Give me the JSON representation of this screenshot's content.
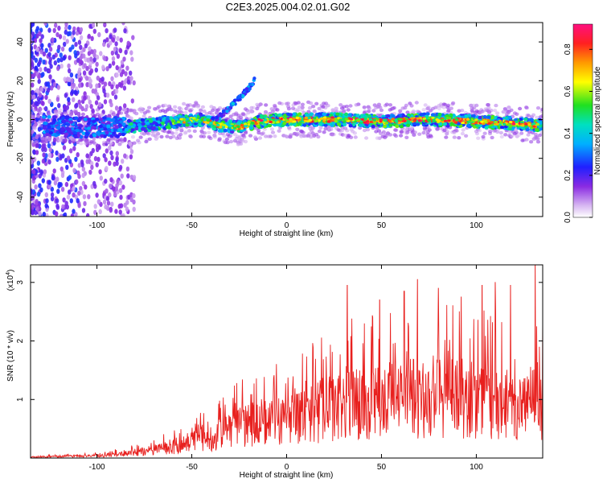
{
  "chart_data": [
    {
      "type": "heatmap",
      "title": "C2E3.2025.004.02.01.G02",
      "xlabel": "Height of straight line (km)",
      "ylabel": "Frequency (Hz)",
      "xlim": [
        -135,
        135
      ],
      "ylim": [
        -50,
        50
      ],
      "xticks": [
        -100,
        -50,
        0,
        50,
        100
      ],
      "yticks": [
        -40,
        -20,
        0,
        20,
        40
      ],
      "colorbar": {
        "label": "Normalized spectral amplitude",
        "range": [
          0,
          0.92
        ],
        "ticks": [
          "0.0",
          "0.2",
          "0.4",
          "0.6",
          "0.8"
        ]
      },
      "signal_track": [
        {
          "x": -128,
          "y": -3
        },
        {
          "x": -110,
          "y": -4
        },
        {
          "x": -90,
          "y": -4
        },
        {
          "x": -75,
          "y": -3
        },
        {
          "x": -60,
          "y": -1
        },
        {
          "x": -45,
          "y": 0
        },
        {
          "x": -35,
          "y": -3
        },
        {
          "x": -25,
          "y": -4
        },
        {
          "x": -15,
          "y": -1
        },
        {
          "x": 0,
          "y": 0
        },
        {
          "x": 25,
          "y": 0
        },
        {
          "x": 50,
          "y": -1
        },
        {
          "x": 75,
          "y": 0
        },
        {
          "x": 100,
          "y": -1
        },
        {
          "x": 120,
          "y": -2
        },
        {
          "x": 135,
          "y": -3
        }
      ],
      "secondary_track": [
        {
          "x": -37,
          "y": 0
        },
        {
          "x": -30,
          "y": 6
        },
        {
          "x": -25,
          "y": 11
        },
        {
          "x": -20,
          "y": 16
        },
        {
          "x": -17,
          "y": 20
        }
      ]
    },
    {
      "type": "line",
      "xlabel": "Height of straight line (km)",
      "ylabel": "SNR (10 * v/v)",
      "y_multiplier": "(x10",
      "y_multiplier_exp": "4",
      "y_multiplier_close": ")",
      "xlim": [
        -135,
        135
      ],
      "ylim": [
        0,
        3.3
      ],
      "xticks": [
        -100,
        -50,
        0,
        50,
        100
      ],
      "yticks": [
        1,
        2,
        3
      ],
      "color": "#e8201e",
      "envelope": [
        {
          "x": -135,
          "y": 0.02
        },
        {
          "x": -100,
          "y": 0.05
        },
        {
          "x": -85,
          "y": 0.09
        },
        {
          "x": -70,
          "y": 0.18
        },
        {
          "x": -50,
          "y": 0.35
        },
        {
          "x": -40,
          "y": 0.45
        },
        {
          "x": -30,
          "y": 0.6
        },
        {
          "x": -20,
          "y": 0.72
        },
        {
          "x": -10,
          "y": 0.8
        },
        {
          "x": 0,
          "y": 0.88
        },
        {
          "x": 10,
          "y": 0.95
        },
        {
          "x": 20,
          "y": 1.05
        },
        {
          "x": 30,
          "y": 1.15
        },
        {
          "x": 40,
          "y": 1.25
        },
        {
          "x": 50,
          "y": 1.3
        },
        {
          "x": 60,
          "y": 1.3
        },
        {
          "x": 80,
          "y": 1.32
        },
        {
          "x": 100,
          "y": 1.3
        },
        {
          "x": 120,
          "y": 1.2
        },
        {
          "x": 135,
          "y": 1.15
        }
      ],
      "peaks": [
        {
          "x": 32,
          "y": 2.95
        },
        {
          "x": 41,
          "y": 2.3
        },
        {
          "x": 49,
          "y": 2.7
        },
        {
          "x": 62,
          "y": 2.85
        },
        {
          "x": 69,
          "y": 3.05
        },
        {
          "x": 80,
          "y": 2.9
        },
        {
          "x": 92,
          "y": 2.75
        },
        {
          "x": 103,
          "y": 2.95
        },
        {
          "x": 110,
          "y": 3.0
        },
        {
          "x": 118,
          "y": 2.95
        },
        {
          "x": 131,
          "y": 3.3
        },
        {
          "x": 135,
          "y": 2.4
        }
      ]
    }
  ]
}
